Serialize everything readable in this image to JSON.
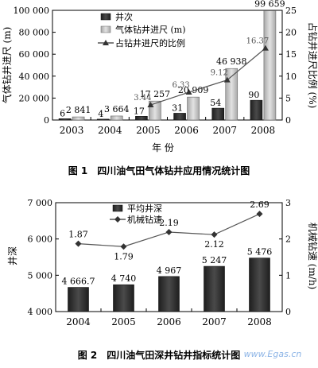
{
  "chart_data": [
    {
      "type": "bar",
      "caption": "图 1　四川油气田气体钻井应用情况统计图",
      "xlabel": "年 份",
      "ylabel": "气体钻井进尺 (m)",
      "y2label": "占钻井进尺比例 (%)",
      "categories": [
        "2003",
        "2004",
        "2005",
        "2006",
        "2007",
        "2008"
      ],
      "ylim": [
        0,
        100000
      ],
      "yticks": [
        "0",
        "20 000",
        "40 000",
        "60 000",
        "80 000",
        "100 000"
      ],
      "y2lim": [
        0,
        25
      ],
      "y2ticks": [
        "0",
        "5",
        "10",
        "15",
        "20",
        "25"
      ],
      "legend_position": "top-left",
      "series": [
        {
          "name": "井次",
          "kind": "bar",
          "scale_values": [
            6,
            4,
            17,
            31,
            54,
            90
          ],
          "labels": [
            "6",
            "4",
            "17",
            "31",
            "54",
            "90"
          ],
          "color": "#3a3a3a"
        },
        {
          "name": "气体钻井进尺 (m)",
          "kind": "bar",
          "values": [
            2841,
            3664,
            17257,
            20909,
            46938,
            99659
          ],
          "labels": [
            "2 841",
            "3 664",
            "17 257",
            "20 909",
            "46 938",
            "99 659"
          ],
          "color": "#c4c4c4"
        },
        {
          "name": "占钻井进尺的比例",
          "kind": "line",
          "axis": "y2",
          "values": [
            null,
            null,
            3.44,
            6.33,
            9.12,
            16.37
          ],
          "labels": [
            "",
            "",
            "3.44",
            "6.33",
            "9.12",
            "16.37"
          ],
          "color": "#555555"
        }
      ]
    },
    {
      "type": "bar",
      "caption": "图 2　四川油气田深井钻井指标统计图",
      "ylabel": "井深",
      "y2label": "机械钻速 (m/h)",
      "categories": [
        "2004",
        "2005",
        "2006",
        "2007",
        "2008"
      ],
      "ylim": [
        4000,
        7000
      ],
      "yticks": [
        "4 000",
        "5 000",
        "6 000",
        "7 000"
      ],
      "y2lim": [
        0,
        3
      ],
      "y2ticks": [
        "0",
        "1",
        "2",
        "3"
      ],
      "legend_position": "top-center",
      "series": [
        {
          "name": "平均井深",
          "kind": "bar",
          "values": [
            4666.7,
            4740,
            4967,
            5247,
            5476
          ],
          "labels": [
            "4 666.7",
            "4 740",
            "4 967",
            "5 247",
            "5 476"
          ],
          "color": "#3a3a3a"
        },
        {
          "name": "机械钻速",
          "kind": "line",
          "axis": "y2",
          "values": [
            1.87,
            1.79,
            2.19,
            2.12,
            2.69
          ],
          "labels": [
            "1.87",
            "1.79",
            "2.19",
            "2.12",
            "2.69"
          ],
          "color": "#555555"
        }
      ]
    }
  ],
  "watermark": "www.Egas.cn"
}
